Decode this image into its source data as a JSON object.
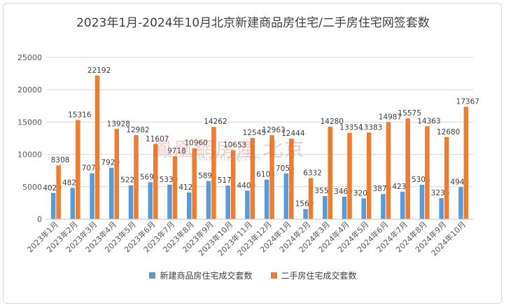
{
  "chart_data": {
    "type": "bar",
    "title": "2023年1月-2024年10月北京新建商品房住宅/二手房住宅网签套数",
    "categories": [
      "2023年1月",
      "2023年2月",
      "2023年3月",
      "2023年4月",
      "2023年5月",
      "2023年6月",
      "2023年7月",
      "2023年8月",
      "2023年9月",
      "2023年10月",
      "2023年11月",
      "2023年12月",
      "2024年1月",
      "2024年2月",
      "2024年3月",
      "2024年4月",
      "2024年5月",
      "2024年6月",
      "2024年7月",
      "2024年8月",
      "2024年9月",
      "2024年10月"
    ],
    "series": [
      {
        "name": "新建商品房住宅成交套数",
        "color": "#5b9bd5",
        "values": [
          4020,
          4824,
          7078,
          7929,
          5224,
          5696,
          5330,
          4122,
          5891,
          5177,
          4409,
          6106,
          7056,
          1560,
          3557,
          3469,
          3207,
          3870,
          4234,
          5308,
          3236,
          4943
        ]
      },
      {
        "name": "二手房住宅成交套数",
        "color": "#ed7d31",
        "values": [
          8308,
          15316,
          22192,
          13928,
          12982,
          11607,
          9718,
          10960,
          14262,
          10653,
          12545,
          12963,
          12444,
          6332,
          14280,
          13354,
          13383,
          14987,
          15575,
          14363,
          12680,
          17367
        ]
      }
    ],
    "ylim": [
      0,
      25000
    ],
    "yticks": [
      0,
      5000,
      10000,
      15000,
      20000,
      25000
    ],
    "grid": true,
    "legend_position": "bottom"
  },
  "watermark": {
    "main": "鳳凰網房產",
    "region": "北京",
    "url": "house.ifeng.com"
  }
}
